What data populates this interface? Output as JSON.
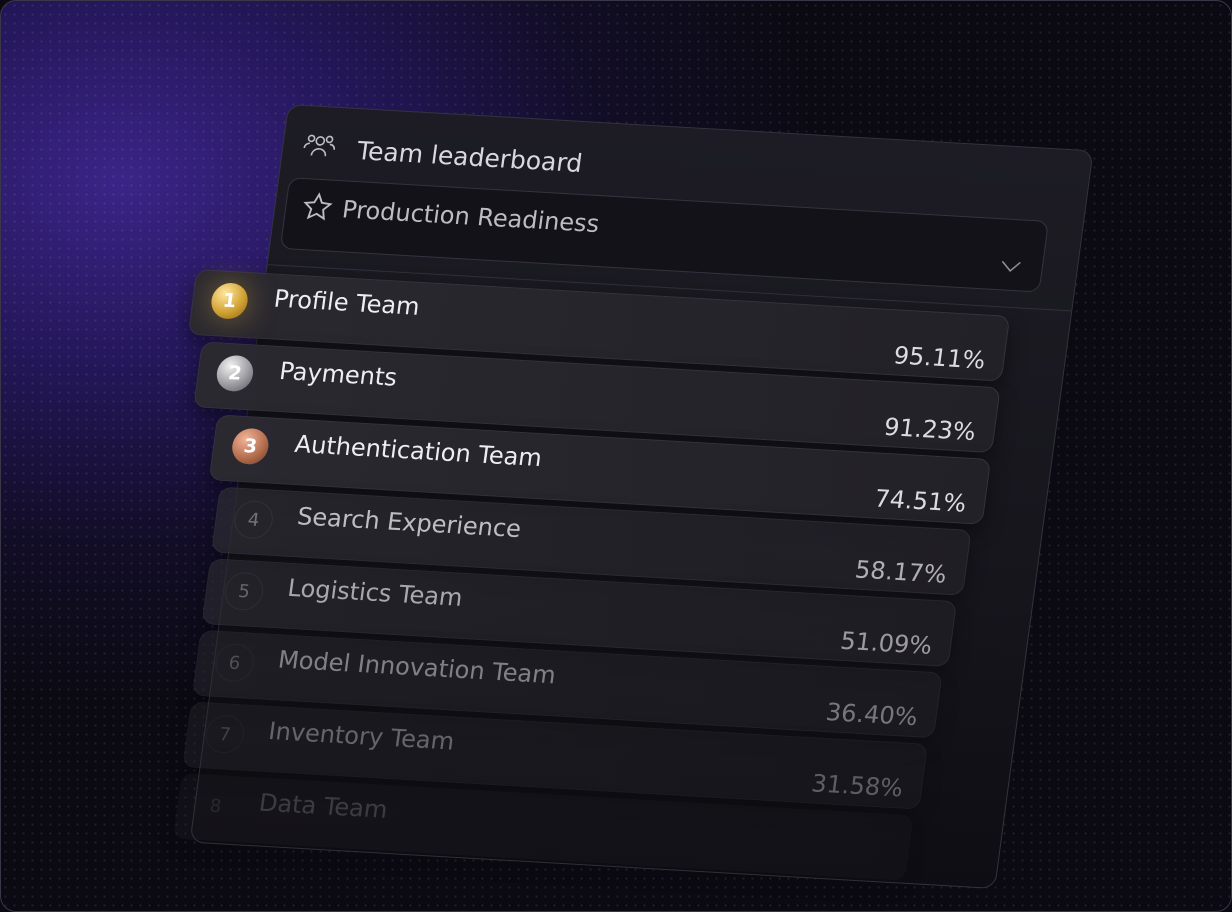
{
  "header": {
    "title": "Team leaderboard",
    "icon": "users-icon"
  },
  "metric_select": {
    "value": "Production Readiness",
    "icon": "star-icon"
  },
  "colors": {
    "gold": "#d1a233",
    "silver": "#9c9ca2",
    "bronze": "#b66f50",
    "accent_bg": "#3b2487"
  },
  "rows": [
    {
      "rank": "1",
      "name": "Profile Team",
      "score": "95.11%"
    },
    {
      "rank": "2",
      "name": "Payments",
      "score": "91.23%"
    },
    {
      "rank": "3",
      "name": "Authentication Team",
      "score": "74.51%"
    },
    {
      "rank": "4",
      "name": "Search Experience",
      "score": "58.17%"
    },
    {
      "rank": "5",
      "name": "Logistics Team",
      "score": "51.09%"
    },
    {
      "rank": "6",
      "name": "Model Innovation Team",
      "score": "36.40%"
    },
    {
      "rank": "7",
      "name": "Inventory Team",
      "score": "31.58%"
    },
    {
      "rank": "8",
      "name": "Data Team"
    }
  ]
}
